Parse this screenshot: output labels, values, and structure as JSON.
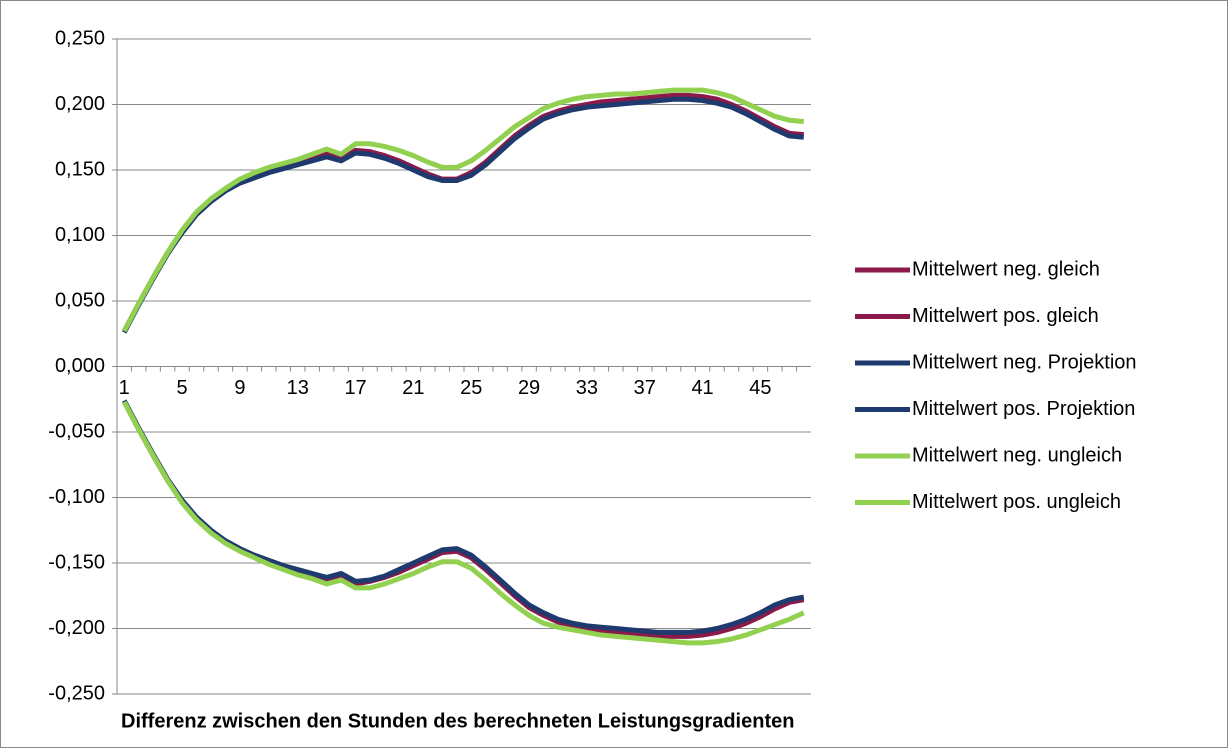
{
  "chart_data": {
    "type": "line",
    "x_label": "Differenz zwischen den Stunden des berechneten Leistungsgradienten",
    "categories": [
      "1",
      null,
      null,
      null,
      "5",
      null,
      null,
      null,
      "9",
      null,
      null,
      null,
      "13",
      null,
      null,
      null,
      "17",
      null,
      null,
      null,
      "21",
      null,
      null,
      null,
      "25",
      null,
      null,
      null,
      "29",
      null,
      null,
      null,
      "33",
      null,
      null,
      null,
      "37",
      null,
      null,
      null,
      "41",
      null,
      null,
      null,
      "45",
      null,
      null,
      null
    ],
    "ylim": [
      -0.25,
      0.25
    ],
    "yticks": [
      {
        "value": -0.25,
        "label": "-0,250"
      },
      {
        "value": -0.2,
        "label": "-0,200"
      },
      {
        "value": -0.15,
        "label": "-0,150"
      },
      {
        "value": -0.1,
        "label": "-0,100"
      },
      {
        "value": -0.05,
        "label": "-0,050"
      },
      {
        "value": 0,
        "label": "0,000"
      },
      {
        "value": 0.05,
        "label": "0,050"
      },
      {
        "value": 0.1,
        "label": "0,100"
      },
      {
        "value": 0.15,
        "label": "0,150"
      },
      {
        "value": 0.2,
        "label": "0,200"
      },
      {
        "value": 0.25,
        "label": "0,250"
      }
    ],
    "grid": true,
    "legend": "right",
    "series": [
      {
        "name": "Mittelwert neg. gleich",
        "color": "#8b1a4a",
        "values": [
          -0.027,
          -0.048,
          -0.068,
          -0.087,
          -0.103,
          -0.116,
          -0.126,
          -0.134,
          -0.14,
          -0.145,
          -0.149,
          -0.153,
          -0.156,
          -0.159,
          -0.163,
          -0.16,
          -0.166,
          -0.164,
          -0.161,
          -0.157,
          -0.152,
          -0.147,
          -0.142,
          -0.141,
          -0.146,
          -0.155,
          -0.165,
          -0.175,
          -0.184,
          -0.19,
          -0.195,
          -0.198,
          -0.2,
          -0.202,
          -0.203,
          -0.204,
          -0.205,
          -0.206,
          -0.206,
          -0.206,
          -0.205,
          -0.203,
          -0.2,
          -0.196,
          -0.191,
          -0.185,
          -0.18,
          -0.178
        ]
      },
      {
        "name": "Mittelwert pos. gleich",
        "color": "#8b1a4a",
        "values": [
          0.027,
          0.048,
          0.068,
          0.087,
          0.103,
          0.117,
          0.127,
          0.135,
          0.141,
          0.145,
          0.149,
          0.152,
          0.155,
          0.158,
          0.162,
          0.158,
          0.165,
          0.164,
          0.161,
          0.157,
          0.152,
          0.147,
          0.143,
          0.143,
          0.148,
          0.156,
          0.166,
          0.176,
          0.184,
          0.191,
          0.195,
          0.198,
          0.2,
          0.202,
          0.203,
          0.204,
          0.205,
          0.206,
          0.207,
          0.207,
          0.206,
          0.204,
          0.2,
          0.195,
          0.189,
          0.183,
          0.178,
          0.177
        ]
      },
      {
        "name": "Mittelwert neg. Projektion",
        "color": "#1f3a6e",
        "values": [
          -0.026,
          -0.047,
          -0.067,
          -0.086,
          -0.102,
          -0.115,
          -0.125,
          -0.133,
          -0.139,
          -0.144,
          -0.148,
          -0.152,
          -0.155,
          -0.158,
          -0.161,
          -0.158,
          -0.164,
          -0.163,
          -0.16,
          -0.155,
          -0.15,
          -0.145,
          -0.14,
          -0.139,
          -0.144,
          -0.153,
          -0.163,
          -0.173,
          -0.182,
          -0.188,
          -0.193,
          -0.196,
          -0.198,
          -0.199,
          -0.2,
          -0.201,
          -0.202,
          -0.203,
          -0.203,
          -0.203,
          -0.202,
          -0.2,
          -0.197,
          -0.193,
          -0.188,
          -0.182,
          -0.178,
          -0.176
        ]
      },
      {
        "name": "Mittelwert pos. Projektion",
        "color": "#1f3a6e",
        "values": [
          0.026,
          0.047,
          0.067,
          0.086,
          0.102,
          0.116,
          0.126,
          0.134,
          0.14,
          0.144,
          0.148,
          0.151,
          0.154,
          0.157,
          0.16,
          0.157,
          0.163,
          0.162,
          0.159,
          0.155,
          0.15,
          0.145,
          0.142,
          0.142,
          0.146,
          0.154,
          0.164,
          0.174,
          0.182,
          0.189,
          0.193,
          0.196,
          0.198,
          0.199,
          0.2,
          0.201,
          0.202,
          0.203,
          0.204,
          0.204,
          0.203,
          0.201,
          0.198,
          0.193,
          0.187,
          0.181,
          0.176,
          0.175
        ]
      },
      {
        "name": "Mittelwert neg. ungleich",
        "color": "#92d050",
        "values": [
          -0.027,
          -0.048,
          -0.068,
          -0.087,
          -0.104,
          -0.117,
          -0.127,
          -0.135,
          -0.141,
          -0.146,
          -0.151,
          -0.155,
          -0.159,
          -0.162,
          -0.166,
          -0.163,
          -0.169,
          -0.169,
          -0.166,
          -0.162,
          -0.158,
          -0.153,
          -0.149,
          -0.149,
          -0.154,
          -0.163,
          -0.173,
          -0.182,
          -0.19,
          -0.196,
          -0.199,
          -0.201,
          -0.203,
          -0.205,
          -0.206,
          -0.207,
          -0.208,
          -0.209,
          -0.21,
          -0.211,
          -0.211,
          -0.21,
          -0.208,
          -0.205,
          -0.201,
          -0.197,
          -0.193,
          -0.188
        ]
      },
      {
        "name": "Mittelwert pos. ungleich",
        "color": "#92d050",
        "values": [
          0.027,
          0.048,
          0.068,
          0.087,
          0.104,
          0.118,
          0.128,
          0.136,
          0.143,
          0.148,
          0.152,
          0.155,
          0.158,
          0.162,
          0.166,
          0.162,
          0.17,
          0.17,
          0.168,
          0.165,
          0.161,
          0.156,
          0.152,
          0.152,
          0.157,
          0.165,
          0.174,
          0.183,
          0.19,
          0.197,
          0.201,
          0.204,
          0.206,
          0.207,
          0.208,
          0.208,
          0.209,
          0.21,
          0.211,
          0.211,
          0.211,
          0.209,
          0.206,
          0.201,
          0.196,
          0.191,
          0.188,
          0.187
        ]
      }
    ]
  }
}
